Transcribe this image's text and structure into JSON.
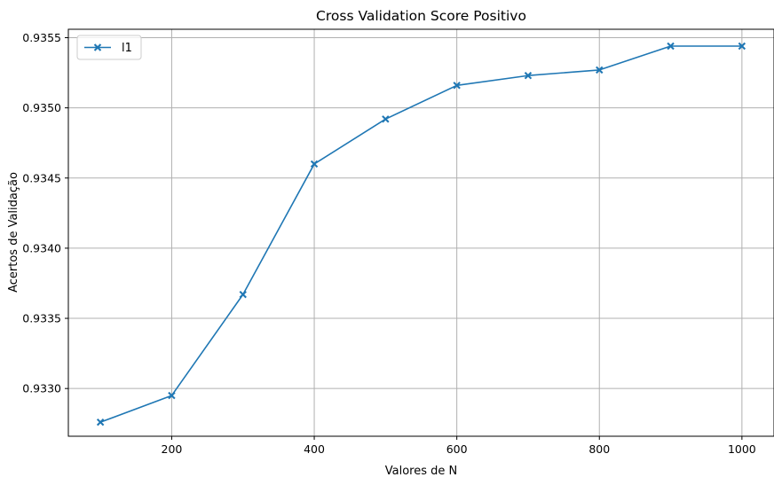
{
  "chart_data": {
    "type": "line",
    "title": "Cross Validation Score Positivo",
    "xlabel": "Valores de N",
    "ylabel": "Acertos de Validação",
    "xlim": [
      55,
      1045
    ],
    "ylim": [
      0.93266,
      0.93556
    ],
    "xticks": [
      200,
      400,
      600,
      800,
      1000
    ],
    "xtick_labels": [
      "200",
      "400",
      "600",
      "800",
      "1000"
    ],
    "yticks": [
      0.933,
      0.9335,
      0.934,
      0.9345,
      0.935,
      0.9355
    ],
    "ytick_labels": [
      "0.9330",
      "0.9335",
      "0.9340",
      "0.9345",
      "0.9350",
      "0.9355"
    ],
    "grid": true,
    "legend_position": "top-left",
    "series": [
      {
        "name": "l1",
        "color": "#1f77b4",
        "marker": "X",
        "x": [
          100,
          200,
          300,
          400,
          500,
          600,
          700,
          800,
          900,
          1000
        ],
        "y": [
          0.93276,
          0.93295,
          0.93367,
          0.9346,
          0.93492,
          0.93516,
          0.93523,
          0.93527,
          0.93544,
          0.93544
        ]
      }
    ]
  }
}
